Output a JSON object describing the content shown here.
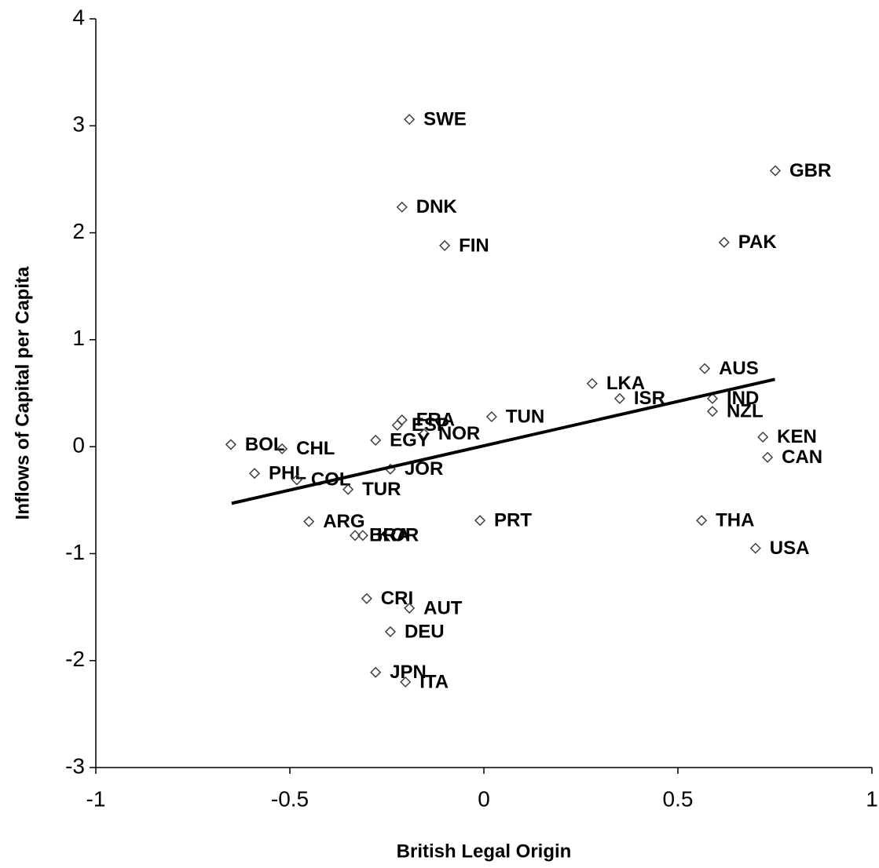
{
  "chart_data": {
    "type": "scatter",
    "xlabel": "British Legal Origin",
    "ylabel": "Inflows of Capital per Capita",
    "labels": [
      "SWE",
      "GBR",
      "DNK",
      "PAK",
      "FIN",
      "AUS",
      "LKA",
      "ISR",
      "IND",
      "NZL",
      "TUN",
      "FRA",
      "ESP",
      "NOR",
      "EGY",
      "BOL",
      "CHL",
      "KEN",
      "CAN",
      "PHL",
      "JOR",
      "COL",
      "TUR",
      "ARG",
      "PRT",
      "THA",
      "BRA",
      "KOR",
      "USA",
      "CRI",
      "AUT",
      "DEU",
      "JPN",
      "ITA"
    ],
    "x": [
      -0.192,
      0.751,
      -0.211,
      0.619,
      -0.101,
      0.569,
      0.279,
      0.35,
      0.589,
      0.589,
      0.02,
      -0.211,
      -0.223,
      -0.154,
      -0.279,
      -0.652,
      -0.52,
      0.719,
      0.731,
      -0.591,
      -0.241,
      -0.482,
      -0.35,
      -0.451,
      -0.01,
      0.561,
      -0.332,
      -0.312,
      0.7,
      -0.302,
      -0.192,
      -0.241,
      -0.279,
      -0.202
    ],
    "y": [
      3.06,
      2.58,
      2.24,
      1.91,
      1.88,
      0.73,
      0.59,
      0.45,
      0.45,
      0.33,
      0.28,
      0.25,
      0.2,
      0.12,
      0.06,
      0.02,
      -0.02,
      0.09,
      -0.1,
      -0.25,
      -0.21,
      -0.31,
      -0.4,
      -0.7,
      -0.69,
      -0.69,
      -0.83,
      -0.83,
      -0.95,
      -1.42,
      -1.51,
      -1.73,
      -2.11,
      -2.2
    ],
    "color": "#404040",
    "trendline": {
      "x": [
        -0.65,
        0.75
      ],
      "y": [
        -0.53,
        0.63
      ],
      "color": "#000000"
    },
    "xlim": [
      -1,
      1
    ],
    "ylim": [
      -3,
      4
    ],
    "xticks": [
      -1,
      -0.5,
      0,
      0.5,
      1
    ],
    "yticks": [
      -3,
      -2,
      -1,
      0,
      1,
      2,
      3,
      4
    ],
    "grid": false
  }
}
